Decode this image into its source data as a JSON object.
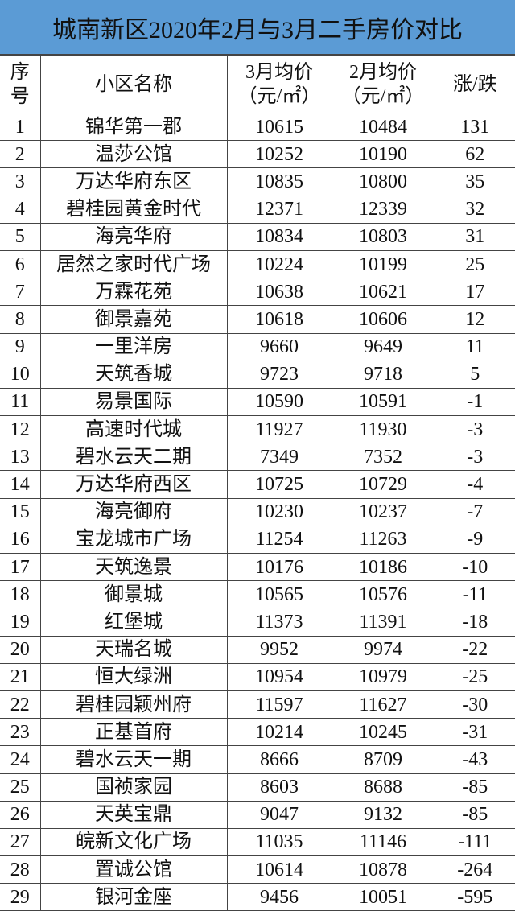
{
  "title": "城南新区2020年2月与3月二手房价对比",
  "headers": {
    "index_line1": "序",
    "index_line2": "号",
    "name": "小区名称",
    "march_line1": "3月均价",
    "march_line2": "（元/㎡）",
    "feb_line1": "2月均价",
    "feb_line2": "（元/㎡）",
    "change": "涨/跌"
  },
  "rows": [
    [
      "1",
      "锦华第一郡",
      "10615",
      "10484",
      "131"
    ],
    [
      "2",
      "温莎公馆",
      "10252",
      "10190",
      "62"
    ],
    [
      "3",
      "万达华府东区",
      "10835",
      "10800",
      "35"
    ],
    [
      "4",
      "碧桂园黄金时代",
      "12371",
      "12339",
      "32"
    ],
    [
      "5",
      "海亮华府",
      "10834",
      "10803",
      "31"
    ],
    [
      "6",
      "居然之家时代广场",
      "10224",
      "10199",
      "25"
    ],
    [
      "7",
      "万霖花苑",
      "10638",
      "10621",
      "17"
    ],
    [
      "8",
      "御景嘉苑",
      "10618",
      "10606",
      "12"
    ],
    [
      "9",
      "一里洋房",
      "9660",
      "9649",
      "11"
    ],
    [
      "10",
      "天筑香城",
      "9723",
      "9718",
      "5"
    ],
    [
      "11",
      "易景国际",
      "10590",
      "10591",
      "-1"
    ],
    [
      "12",
      "高速时代城",
      "11927",
      "11930",
      "-3"
    ],
    [
      "13",
      "碧水云天二期",
      "7349",
      "7352",
      "-3"
    ],
    [
      "14",
      "万达华府西区",
      "10725",
      "10729",
      "-4"
    ],
    [
      "15",
      "海亮御府",
      "10230",
      "10237",
      "-7"
    ],
    [
      "16",
      "宝龙城市广场",
      "11254",
      "11263",
      "-9"
    ],
    [
      "17",
      "天筑逸景",
      "10176",
      "10186",
      "-10"
    ],
    [
      "18",
      "御景城",
      "10565",
      "10576",
      "-11"
    ],
    [
      "19",
      "红堡城",
      "11373",
      "11391",
      "-18"
    ],
    [
      "20",
      "天瑞名城",
      "9952",
      "9974",
      "-22"
    ],
    [
      "21",
      "恒大绿洲",
      "10954",
      "10979",
      "-25"
    ],
    [
      "22",
      "碧桂园颖州府",
      "11597",
      "11627",
      "-30"
    ],
    [
      "23",
      "正基首府",
      "10214",
      "10245",
      "-31"
    ],
    [
      "24",
      "碧水云天一期",
      "8666",
      "8709",
      "-43"
    ],
    [
      "25",
      "国祯家园",
      "8603",
      "8688",
      "-85"
    ],
    [
      "26",
      "天英宝鼎",
      "9047",
      "9132",
      "-85"
    ],
    [
      "27",
      "皖新文化广场",
      "11035",
      "11146",
      "-111"
    ],
    [
      "28",
      "置诚公馆",
      "10614",
      "10878",
      "-264"
    ],
    [
      "29",
      "银河金座",
      "9456",
      "10051",
      "-595"
    ]
  ],
  "colors": {
    "title_bg": "#5b9bd5"
  }
}
